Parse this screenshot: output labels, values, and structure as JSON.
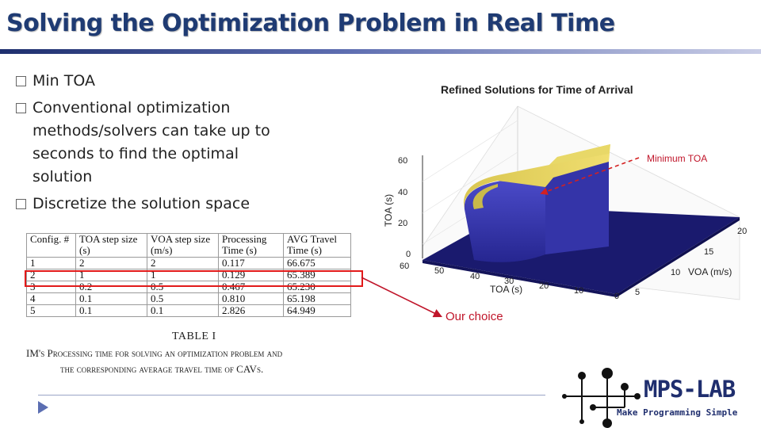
{
  "slide": {
    "title": "Solving the Optimization Problem in Real Time"
  },
  "bullets": [
    "Min TOA",
    "Conventional optimization methods/solvers can take up to seconds to find the optimal solution",
    "Discretize the solution space"
  ],
  "table": {
    "headers": [
      "Config. #",
      "TOA step size (s)",
      "VOA step size (m/s)",
      "Processing Time (s)",
      "AVG Travel Time (s)"
    ],
    "rows": [
      [
        "1",
        "2",
        "2",
        "0.117",
        "66.675"
      ],
      [
        "2",
        "1",
        "1",
        "0.129",
        "65.389"
      ],
      [
        "3",
        "0.2",
        "0.5",
        "0.467",
        "65.230"
      ],
      [
        "4",
        "0.1",
        "0.5",
        "0.810",
        "65.198"
      ],
      [
        "5",
        "0.1",
        "0.1",
        "2.826",
        "64.949"
      ]
    ],
    "highlighted_row": 2,
    "caption_number": "TABLE I",
    "caption_line1": "IM's Processing time for solving an optimization problem and",
    "caption_line2": "the corresponding average travel time of CAVs."
  },
  "chart_data": {
    "type": "surface",
    "title": "Refined Solutions for Time of Arrival",
    "xlabel": "VOA (m/s)",
    "ylabel": "TOA (s)",
    "zlabel": "TOA (s)",
    "x_ticks": [
      "0",
      "5",
      "10",
      "15",
      "20"
    ],
    "y_ticks": [
      "10",
      "20",
      "30",
      "40",
      "50",
      "60"
    ],
    "z_ticks": [
      "0",
      "20",
      "40",
      "60"
    ],
    "annotation": "Minimum TOA",
    "colors": {
      "surface_top": "#e6d25a",
      "surface_side": "#3a3aa8",
      "floor": "#1a1a6e"
    }
  },
  "annotation": {
    "our_choice": "Our choice"
  },
  "logo": {
    "name": "MPS-LAB",
    "tagline": "Make Programming Simple"
  },
  "colors": {
    "title": "#1f3b73",
    "highlight": "#e21a1a",
    "logo": "#1f2e6e"
  },
  "icons": {
    "bullet": "box-bullet-icon",
    "nav": "play-arrow-icon"
  }
}
